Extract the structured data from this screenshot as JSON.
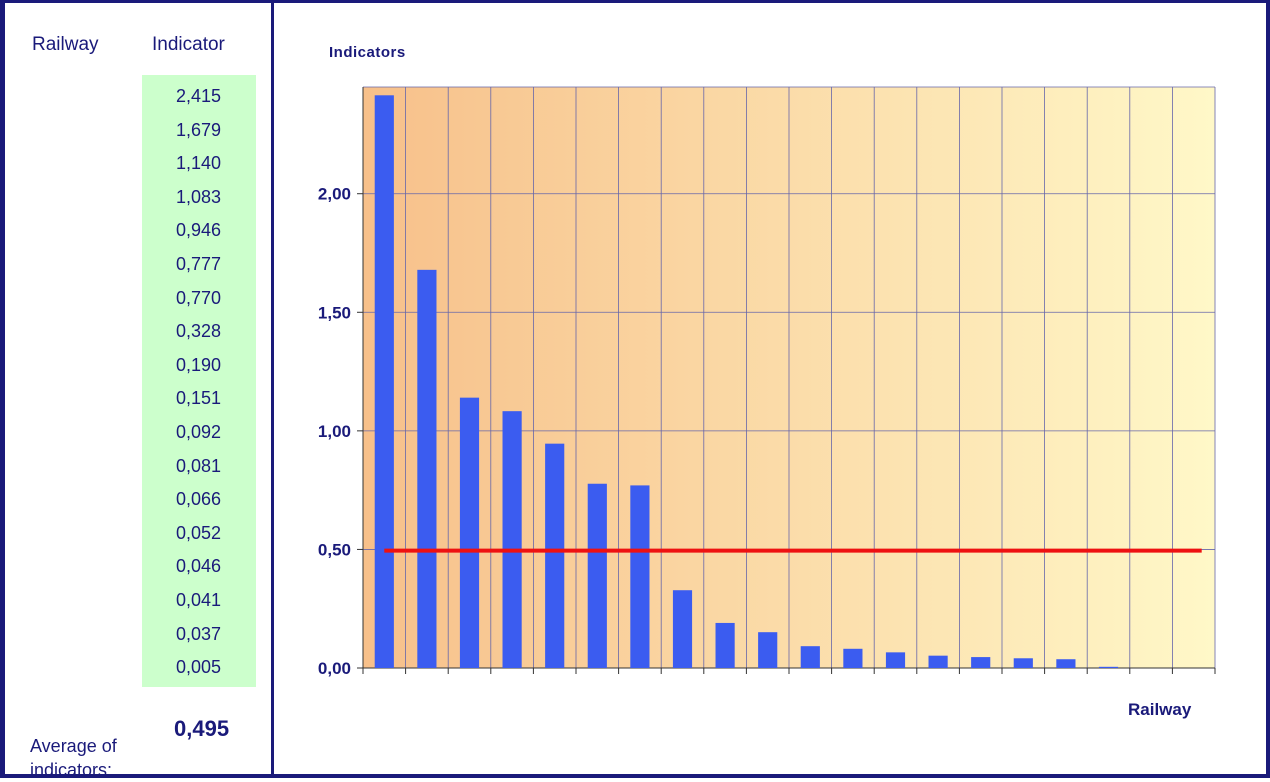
{
  "table": {
    "col_railway": "Railway",
    "col_indicator": "Indicator",
    "values": [
      "2,415",
      "1,679",
      "1,140",
      "1,083",
      "0,946",
      "0,777",
      "0,770",
      "0,328",
      "0,190",
      "0,151",
      "0,092",
      "0,081",
      "0,066",
      "0,052",
      "0,046",
      "0,041",
      "0,037",
      "0,005"
    ],
    "average_label": "Average of indicators:",
    "average_value": "0,495"
  },
  "chart_data": {
    "type": "bar",
    "title": "Indicators",
    "xlabel": "Railway",
    "ylabel": "",
    "categories": [
      "",
      "",
      "",
      "",
      "",
      "",
      "",
      "",
      "",
      "",
      "",
      "",
      "",
      "",
      "",
      "",
      "",
      "",
      "",
      ""
    ],
    "values": [
      2.415,
      1.679,
      1.14,
      1.083,
      0.946,
      0.777,
      0.77,
      0.328,
      0.19,
      0.151,
      0.092,
      0.081,
      0.066,
      0.052,
      0.046,
      0.041,
      0.037,
      0.005,
      0,
      0
    ],
    "ylim": [
      0,
      2.45
    ],
    "yticks": [
      "0,00",
      "0,50",
      "1,00",
      "1,50",
      "2,00"
    ],
    "ytick_values": [
      0,
      0.5,
      1.0,
      1.5,
      2.0
    ],
    "average_line": 0.495,
    "grid": true,
    "colors": {
      "bar": "#3b5cf0",
      "average_line": "#ee1111",
      "grid": "#6666aa",
      "bg_left": "#f7c08a",
      "bg_right": "#fff8c8"
    }
  }
}
